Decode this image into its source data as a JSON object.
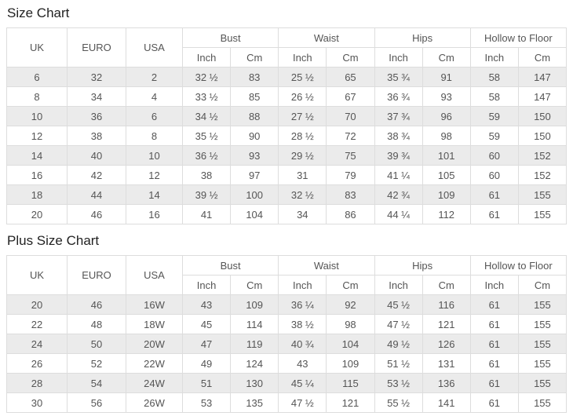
{
  "colors": {
    "stripe_row_bg": "#ebebeb",
    "table_border": "#dddddd",
    "cell_text": "#555555",
    "title_text": "#222222"
  },
  "size_chart": {
    "title": "Size Chart",
    "columns": [
      "UK",
      "EURO",
      "USA"
    ],
    "groups": [
      "Bust",
      "Waist",
      "Hips",
      "Hollow to Floor"
    ],
    "subheaders": [
      "Inch",
      "Cm"
    ],
    "rows": [
      [
        "6",
        "32",
        "2",
        "32 ½",
        "83",
        "25 ½",
        "65",
        "35 ¾",
        "91",
        "58",
        "147"
      ],
      [
        "8",
        "34",
        "4",
        "33 ½",
        "85",
        "26 ½",
        "67",
        "36 ¾",
        "93",
        "58",
        "147"
      ],
      [
        "10",
        "36",
        "6",
        "34 ½",
        "88",
        "27 ½",
        "70",
        "37 ¾",
        "96",
        "59",
        "150"
      ],
      [
        "12",
        "38",
        "8",
        "35 ½",
        "90",
        "28 ½",
        "72",
        "38 ¾",
        "98",
        "59",
        "150"
      ],
      [
        "14",
        "40",
        "10",
        "36 ½",
        "93",
        "29 ½",
        "75",
        "39 ¾",
        "101",
        "60",
        "152"
      ],
      [
        "16",
        "42",
        "12",
        "38",
        "97",
        "31",
        "79",
        "41 ¼",
        "105",
        "60",
        "152"
      ],
      [
        "18",
        "44",
        "14",
        "39 ½",
        "100",
        "32 ½",
        "83",
        "42 ¾",
        "109",
        "61",
        "155"
      ],
      [
        "20",
        "46",
        "16",
        "41",
        "104",
        "34",
        "86",
        "44 ¼",
        "112",
        "61",
        "155"
      ]
    ]
  },
  "plus_size_chart": {
    "title": "Plus Size Chart",
    "columns": [
      "UK",
      "EURO",
      "USA"
    ],
    "groups": [
      "Bust",
      "Waist",
      "Hips",
      "Hollow to Floor"
    ],
    "subheaders": [
      "Inch",
      "Cm"
    ],
    "rows": [
      [
        "20",
        "46",
        "16W",
        "43",
        "109",
        "36 ¼",
        "92",
        "45 ½",
        "116",
        "61",
        "155"
      ],
      [
        "22",
        "48",
        "18W",
        "45",
        "114",
        "38 ½",
        "98",
        "47 ½",
        "121",
        "61",
        "155"
      ],
      [
        "24",
        "50",
        "20W",
        "47",
        "119",
        "40 ¾",
        "104",
        "49 ½",
        "126",
        "61",
        "155"
      ],
      [
        "26",
        "52",
        "22W",
        "49",
        "124",
        "43",
        "109",
        "51 ½",
        "131",
        "61",
        "155"
      ],
      [
        "28",
        "54",
        "24W",
        "51",
        "130",
        "45 ¼",
        "115",
        "53 ½",
        "136",
        "61",
        "155"
      ],
      [
        "30",
        "56",
        "26W",
        "53",
        "135",
        "47 ½",
        "121",
        "55 ½",
        "141",
        "61",
        "155"
      ]
    ]
  }
}
